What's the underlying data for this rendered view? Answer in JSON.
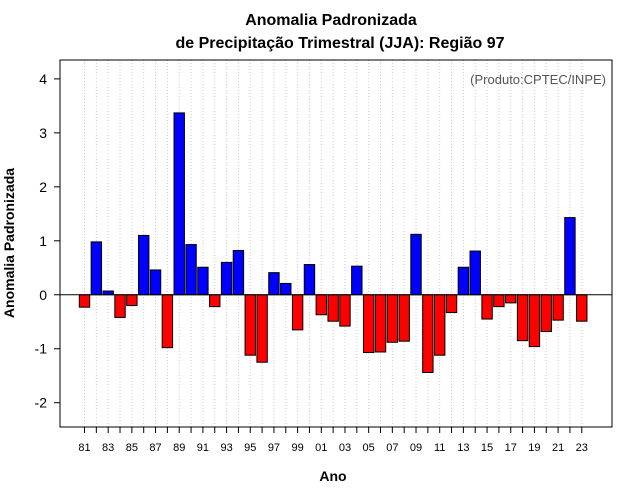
{
  "chart_data": {
    "type": "bar",
    "title": [
      "Anomalia Padronizada",
      "de Precipitação Trimestral (JJA): Região 97"
    ],
    "xlabel": "Ano",
    "ylabel": "Anomalia Padronizada",
    "annotation": "(Produto:CPTEC/INPE)",
    "ylim": [
      -2.45,
      4.35
    ],
    "yticks": [
      -2,
      -1,
      0,
      1,
      2,
      3,
      4
    ],
    "grid": "vertical dotted",
    "colors": {
      "positive": "#0000ff",
      "negative": "#ff0000",
      "baseline": "#000000",
      "grid": "#cccccc"
    },
    "x_tick_labels": [
      "81",
      "83",
      "85",
      "87",
      "89",
      "91",
      "93",
      "95",
      "97",
      "99",
      "01",
      "03",
      "05",
      "07",
      "09",
      "11",
      "13",
      "15",
      "17",
      "19",
      "21",
      "23"
    ],
    "series": [
      {
        "name": "Anomalia Padronizada",
        "categories": [
          "1981",
          "1982",
          "1983",
          "1984",
          "1985",
          "1986",
          "1987",
          "1988",
          "1989",
          "1990",
          "1991",
          "1992",
          "1993",
          "1994",
          "1995",
          "1996",
          "1997",
          "1998",
          "1999",
          "2000",
          "2001",
          "2002",
          "2003",
          "2004",
          "2005",
          "2006",
          "2007",
          "2008",
          "2009",
          "2010",
          "2011",
          "2012",
          "2013",
          "2014",
          "2015",
          "2016",
          "2017",
          "2018",
          "2019",
          "2020",
          "2021",
          "2022",
          "2023"
        ],
        "values": [
          -0.23,
          0.98,
          0.07,
          -0.42,
          -0.2,
          1.1,
          0.46,
          -0.98,
          3.37,
          0.93,
          0.51,
          -0.22,
          0.6,
          0.82,
          -1.12,
          -1.25,
          0.41,
          0.21,
          -0.65,
          0.56,
          -0.37,
          -0.49,
          -0.58,
          0.53,
          -1.07,
          -1.06,
          -0.88,
          -0.86,
          1.12,
          -1.44,
          -1.12,
          -0.33,
          0.51,
          0.81,
          -0.45,
          -0.22,
          -0.15,
          -0.85,
          -0.96,
          -0.68,
          -0.47,
          1.43,
          -0.49
        ]
      }
    ]
  }
}
